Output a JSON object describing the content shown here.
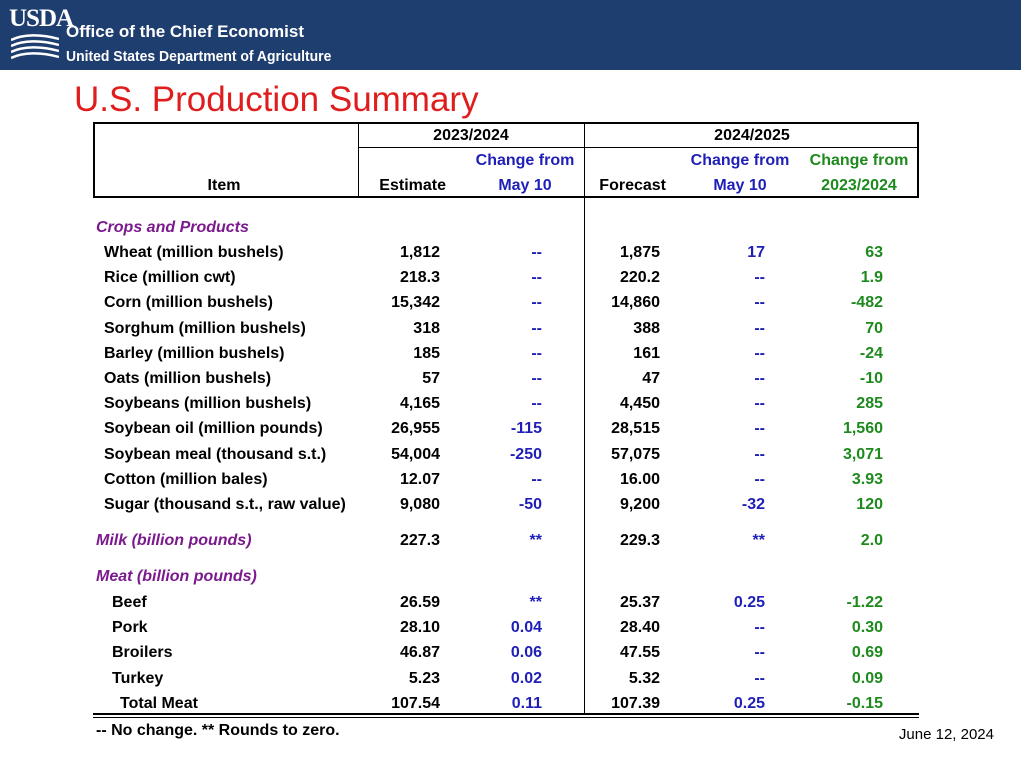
{
  "header": {
    "logo_text": "USDA",
    "org_name": "Office of the Chief Economist",
    "department": "United States Department of Agriculture"
  },
  "title": "U.S. Production Summary",
  "table": {
    "col_headers": {
      "period_2023": "2023/2024",
      "period_2024": "2024/2025",
      "item": "Item",
      "estimate": "Estimate",
      "change_may10_l1": "Change from",
      "change_may10_l2": "May 10",
      "forecast": "Forecast",
      "change_2324_l1": "Change from",
      "change_2324_l2": "2023/2024"
    },
    "sections": {
      "crops": "Crops and Products",
      "milk": "Milk (billion pounds)",
      "meat": "Meat (billion pounds)"
    },
    "crops": [
      {
        "item": "Wheat (million bushels)",
        "estimate": "1,812",
        "chg_est": "--",
        "forecast": "1,875",
        "chg_fc": "17",
        "chg_yoy": "63"
      },
      {
        "item": "Rice (million cwt)",
        "estimate": "218.3",
        "chg_est": "--",
        "forecast": "220.2",
        "chg_fc": "--",
        "chg_yoy": "1.9"
      },
      {
        "item": "Corn (million bushels)",
        "estimate": "15,342",
        "chg_est": "--",
        "forecast": "14,860",
        "chg_fc": "--",
        "chg_yoy": "-482"
      },
      {
        "item": "Sorghum (million bushels)",
        "estimate": "318",
        "chg_est": "--",
        "forecast": "388",
        "chg_fc": "--",
        "chg_yoy": "70"
      },
      {
        "item": "Barley (million bushels)",
        "estimate": "185",
        "chg_est": "--",
        "forecast": "161",
        "chg_fc": "--",
        "chg_yoy": "-24"
      },
      {
        "item": "Oats (million bushels)",
        "estimate": "57",
        "chg_est": "--",
        "forecast": "47",
        "chg_fc": "--",
        "chg_yoy": "-10"
      },
      {
        "item": "Soybeans (million bushels)",
        "estimate": "4,165",
        "chg_est": "--",
        "forecast": "4,450",
        "chg_fc": "--",
        "chg_yoy": "285"
      },
      {
        "item": "Soybean oil (million pounds)",
        "estimate": "26,955",
        "chg_est": "-115",
        "forecast": "28,515",
        "chg_fc": "--",
        "chg_yoy": "1,560"
      },
      {
        "item": "Soybean meal (thousand s.t.)",
        "estimate": "54,004",
        "chg_est": "-250",
        "forecast": "57,075",
        "chg_fc": "--",
        "chg_yoy": "3,071"
      },
      {
        "item": "Cotton (million bales)",
        "estimate": "12.07",
        "chg_est": "--",
        "forecast": "16.00",
        "chg_fc": "--",
        "chg_yoy": "3.93"
      },
      {
        "item": "Sugar (thousand s.t., raw value)",
        "estimate": "9,080",
        "chg_est": "-50",
        "forecast": "9,200",
        "chg_fc": "-32",
        "chg_yoy": "120"
      }
    ],
    "milk": {
      "estimate": "227.3",
      "chg_est": "**",
      "forecast": "229.3",
      "chg_fc": "**",
      "chg_yoy": "2.0"
    },
    "meat": [
      {
        "item": "Beef",
        "estimate": "26.59",
        "chg_est": "**",
        "forecast": "25.37",
        "chg_fc": "0.25",
        "chg_yoy": "-1.22"
      },
      {
        "item": "Pork",
        "estimate": "28.10",
        "chg_est": "0.04",
        "forecast": "28.40",
        "chg_fc": "--",
        "chg_yoy": "0.30"
      },
      {
        "item": "Broilers",
        "estimate": "46.87",
        "chg_est": "0.06",
        "forecast": "47.55",
        "chg_fc": "--",
        "chg_yoy": "0.69"
      },
      {
        "item": "Turkey",
        "estimate": "5.23",
        "chg_est": "0.02",
        "forecast": "5.32",
        "chg_fc": "--",
        "chg_yoy": "0.09"
      },
      {
        "item": "Total Meat",
        "estimate": "107.54",
        "chg_est": "0.11",
        "forecast": "107.39",
        "chg_fc": "0.25",
        "chg_yoy": "-0.15"
      }
    ]
  },
  "footnote": "-- No change.  ** Rounds to zero.",
  "date": "June 12, 2024",
  "colors": {
    "header_bg": "#1f3e70",
    "title": "#e01d1d",
    "change_may10": "#1f1fb8",
    "change_yoy": "#1e8a1e",
    "section_label": "#7a1a8c"
  }
}
